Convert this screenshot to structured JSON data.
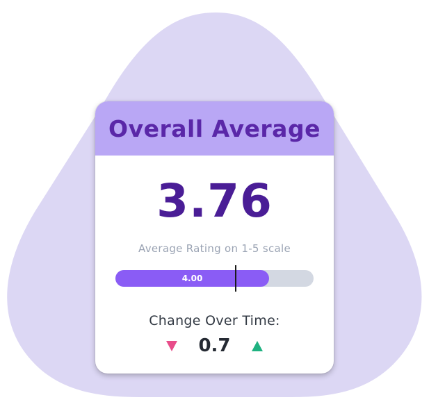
{
  "card": {
    "title": "Overall Average",
    "value": "3.76",
    "subtitle": "Average Rating on 1-5 scale"
  },
  "benchmark_bar": {
    "label": "4.00",
    "fill_fraction": 0.775,
    "marker_fraction": 0.605
  },
  "change": {
    "label": "Change Over Time:",
    "value": "0.7",
    "down_icon": "triangle-down-icon",
    "up_icon": "triangle-up-icon"
  },
  "colors": {
    "backdrop": "#dcd7f4",
    "header": "#b9a7f5",
    "title": "#5a27a8",
    "value": "#4a1d96",
    "bar_fill": "#8a5cf5",
    "bar_track": "#d3d8e2",
    "down": "#e84d8a",
    "up": "#1fb281"
  }
}
